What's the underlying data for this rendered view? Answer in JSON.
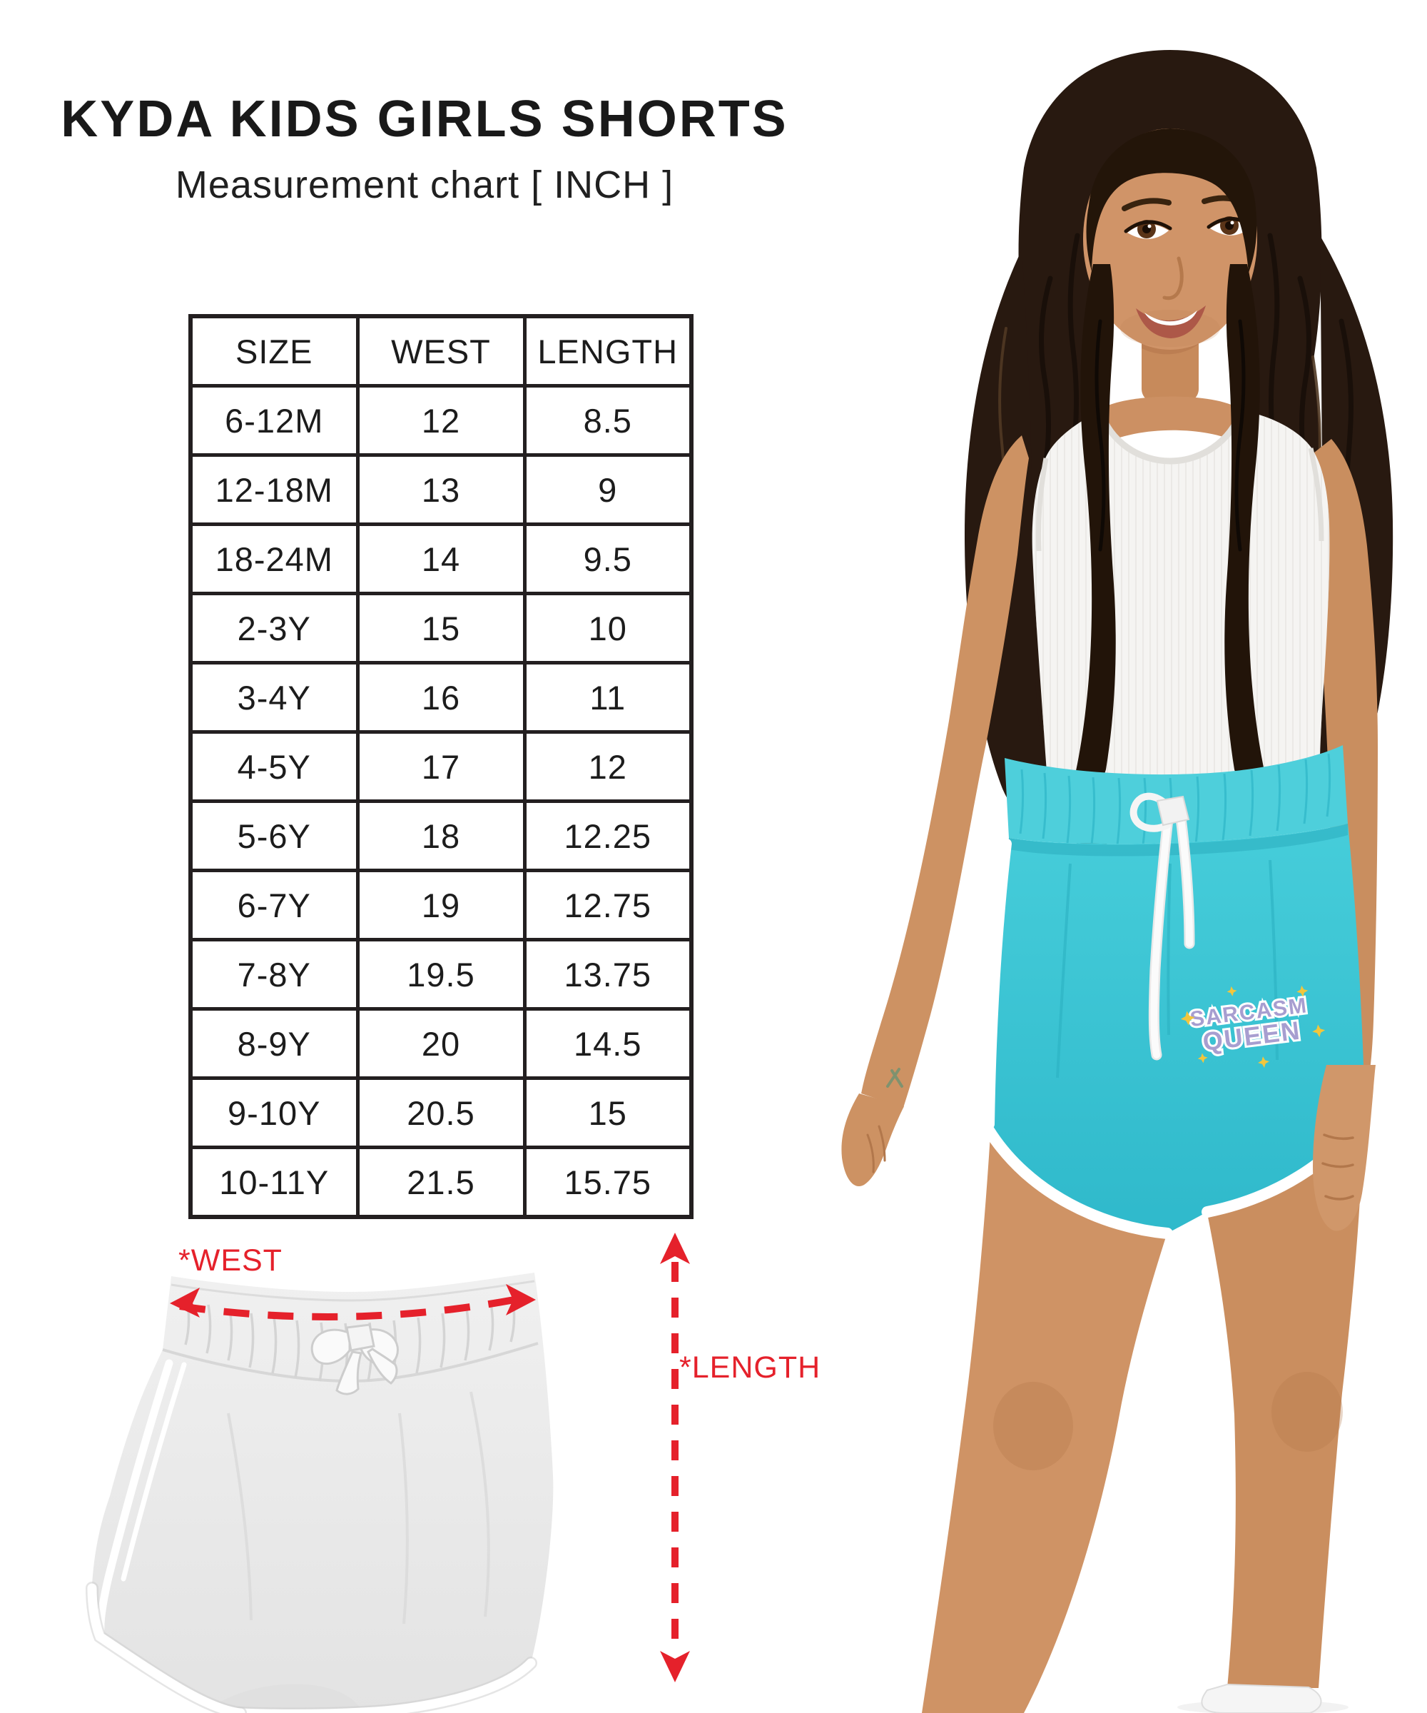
{
  "header": {
    "title": "KYDA KIDS GIRLS SHORTS",
    "subtitle": "Measurement chart [ INCH ]"
  },
  "table": {
    "columns": [
      "SIZE",
      "WEST",
      "LENGTH"
    ],
    "rows": [
      [
        "6-12M",
        "12",
        "8.5"
      ],
      [
        "12-18M",
        "13",
        "9"
      ],
      [
        "18-24M",
        "14",
        "9.5"
      ],
      [
        "2-3Y",
        "15",
        "10"
      ],
      [
        "3-4Y",
        "16",
        "11"
      ],
      [
        "4-5Y",
        "17",
        "12"
      ],
      [
        "5-6Y",
        "18",
        "12.25"
      ],
      [
        "6-7Y",
        "19",
        "12.75"
      ],
      [
        "7-8Y",
        "19.5",
        "13.75"
      ],
      [
        "8-9Y",
        "20",
        "14.5"
      ],
      [
        "9-10Y",
        "20.5",
        "15"
      ],
      [
        "10-11Y",
        "21.5",
        "15.75"
      ]
    ]
  },
  "diagram": {
    "west_label": "*WEST",
    "length_label": "*LENGTH"
  },
  "girl": {
    "print_line1": "SARCASM",
    "print_line2": "QUEEN"
  },
  "colors": {
    "accent_red": "#e5212b",
    "shorts_turquoise": "#3fc8d5",
    "print_purple": "#a79ed0",
    "sparkle_yellow": "#f2c63d",
    "table_border": "#231f20",
    "ink": "#1d1d1b"
  }
}
